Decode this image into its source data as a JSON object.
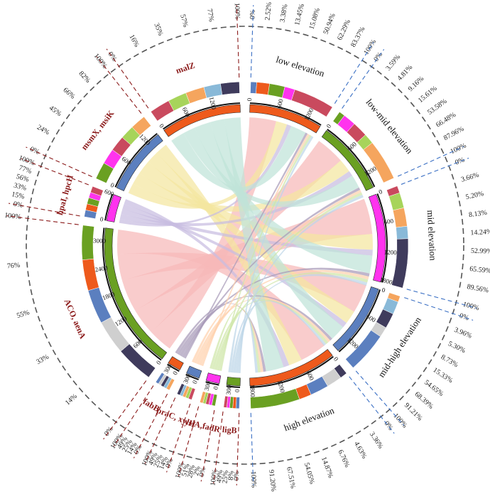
{
  "chart_data": {
    "type": "chord",
    "title": "",
    "colors": {
      "segment_fills": [
        "#5b7fbf",
        "#ee5a1c",
        "#6aa022",
        "#ff33ee",
        "#c94a5e",
        "#a7d45a",
        "#f5a55e",
        "#89b9d8",
        "#3f3b5c",
        "#cfcfcf"
      ],
      "link_colors": [
        "#bcd5e8",
        "#cfe6a8",
        "#ffd1ad",
        "#a79ab8",
        "#f7b8b8",
        "#c8bde0",
        "#f4e6a0",
        "#bfe3d8"
      ],
      "habitat_dash": "#3a6fc4",
      "gene_dash": "#8b1a1a",
      "outer_dash": "#555555"
    },
    "habitat_segments": [
      {
        "name": "low elevation",
        "total": 1500,
        "ticks": [
          "0",
          "600",
          "1200"
        ],
        "pct_labels": [
          "100%",
          "83.37%",
          "62.29%",
          "50.94%",
          "15.08%",
          "13.45%",
          "3.38%",
          "2.52%",
          "0%"
        ]
      },
      {
        "name": "low-mid elevation",
        "total": 1500,
        "ticks": [
          "0",
          "600",
          "1200"
        ],
        "pct_labels": [
          "100%",
          "87.96%",
          "66.48%",
          "53.58%",
          "15.61%",
          "9.16%",
          "4.81%",
          "3.59%",
          "0%"
        ]
      },
      {
        "name": "mid elevation",
        "total": 1800,
        "ticks": [
          "0",
          "600",
          "1200",
          "1800"
        ],
        "pct_labels": [
          "100%",
          "89.56%",
          "65.59%",
          "52.99%",
          "14.24%",
          "8.13%",
          "5.20%",
          "3.66%",
          "0%"
        ]
      },
      {
        "name": "mid-high elevation",
        "total": 1500,
        "ticks": [
          "0",
          "600",
          "1200"
        ],
        "pct_labels": [
          "100%",
          "91.21%",
          "68.39%",
          "54.65%",
          "15.33%",
          "8.73%",
          "5.30%",
          "3.96%",
          "0%"
        ]
      },
      {
        "name": "high elevation",
        "total": 1800,
        "ticks": [
          "0",
          "600",
          "1200",
          "1800"
        ],
        "pct_labels": [
          "100%",
          "91.20%",
          "67.51%",
          "54.05%",
          "14.87%",
          "6.76%",
          "4.63%",
          "3.36%",
          "0%"
        ]
      }
    ],
    "gene_segments": [
      {
        "name": "ligB",
        "total": 300,
        "ticks": [
          "0",
          "300"
        ],
        "pct_labels": [
          "100%",
          "49%",
          "25%",
          "8%",
          "0%"
        ]
      },
      {
        "name": "ysiA,fadR",
        "total": 300,
        "ticks": [
          "0",
          "300"
        ],
        "pct_labels": [
          "100%",
          "51%",
          "28%",
          "2%",
          "0%"
        ]
      },
      {
        "name": "praC, xylH",
        "total": 300,
        "ticks": [
          "0",
          "300"
        ],
        "pct_labels": [
          "100%",
          "49%",
          "25%",
          "14%",
          "0%"
        ]
      },
      {
        "name": "fabB",
        "total": 300,
        "ticks": [
          "0",
          "300"
        ],
        "pct_labels": [
          "100%",
          "49%",
          "25%",
          "14%",
          "0%"
        ]
      },
      {
        "name": "ACO, aenA",
        "total": 3300,
        "ticks": [
          "0",
          "600",
          "1200",
          "1800",
          "2400",
          "3000"
        ],
        "pct_labels": [
          "100%",
          "76%",
          "55%",
          "33%",
          "14%",
          "0%"
        ]
      },
      {
        "name": "hpaI, hpcH",
        "total": 600,
        "ticks": [
          "0",
          "600"
        ],
        "pct_labels": [
          "100%",
          "77%",
          "56%",
          "33%",
          "15%",
          "0%"
        ]
      },
      {
        "name": "msmX, msiK",
        "total": 1500,
        "ticks": [
          "0",
          "600",
          "1200"
        ],
        "pct_labels": [
          "100%",
          "82%",
          "66%",
          "45%",
          "24%",
          "0%"
        ]
      },
      {
        "name": "malZ",
        "total": 1800,
        "ticks": [
          "0",
          "600",
          "1200"
        ],
        "pct_labels": [
          "100%",
          "77%",
          "57%",
          "35%",
          "16%",
          "0%"
        ]
      }
    ],
    "links": [
      {
        "source": "ACO, aenA",
        "target": "low elevation",
        "value": 600
      },
      {
        "source": "ACO, aenA",
        "target": "low-mid elevation",
        "value": 650
      },
      {
        "source": "ACO, aenA",
        "target": "mid elevation",
        "value": 800
      },
      {
        "source": "ACO, aenA",
        "target": "mid-high elevation",
        "value": 650
      },
      {
        "source": "ACO, aenA",
        "target": "high elevation",
        "value": 600
      },
      {
        "source": "msmX, msiK",
        "target": "low elevation",
        "value": 250
      },
      {
        "source": "msmX, msiK",
        "target": "low-mid elevation",
        "value": 300
      },
      {
        "source": "msmX, msiK",
        "target": "mid elevation",
        "value": 350
      },
      {
        "source": "msmX, msiK",
        "target": "mid-high elevation",
        "value": 300
      },
      {
        "source": "msmX, msiK",
        "target": "high elevation",
        "value": 300
      },
      {
        "source": "hpaI, hpcH",
        "target": "low elevation",
        "value": 100
      },
      {
        "source": "hpaI, hpcH",
        "target": "low-mid elevation",
        "value": 120
      },
      {
        "source": "hpaI, hpcH",
        "target": "mid elevation",
        "value": 130
      },
      {
        "source": "hpaI, hpcH",
        "target": "mid-high elevation",
        "value": 120
      },
      {
        "source": "hpaI, hpcH",
        "target": "high elevation",
        "value": 130
      },
      {
        "source": "malZ",
        "target": "low elevation",
        "value": 350
      },
      {
        "source": "malZ",
        "target": "low-mid elevation",
        "value": 300
      },
      {
        "source": "malZ",
        "target": "mid elevation",
        "value": 400
      },
      {
        "source": "malZ",
        "target": "mid-high elevation",
        "value": 350
      },
      {
        "source": "malZ",
        "target": "high elevation",
        "value": 400
      },
      {
        "source": "fabB",
        "target": "low elevation",
        "value": 50
      },
      {
        "source": "fabB",
        "target": "low-mid elevation",
        "value": 60
      },
      {
        "source": "fabB",
        "target": "mid elevation",
        "value": 70
      },
      {
        "source": "fabB",
        "target": "mid-high elevation",
        "value": 60
      },
      {
        "source": "fabB",
        "target": "high elevation",
        "value": 60
      },
      {
        "source": "praC, xylH",
        "target": "low elevation",
        "value": 50
      },
      {
        "source": "praC, xylH",
        "target": "low-mid elevation",
        "value": 60
      },
      {
        "source": "praC, xylH",
        "target": "mid elevation",
        "value": 70
      },
      {
        "source": "praC, xylH",
        "target": "mid-high elevation",
        "value": 60
      },
      {
        "source": "praC, xylH",
        "target": "high elevation",
        "value": 60
      },
      {
        "source": "ysiA,fadR",
        "target": "low elevation",
        "value": 50
      },
      {
        "source": "ysiA,fadR",
        "target": "low-mid elevation",
        "value": 60
      },
      {
        "source": "ysiA,fadR",
        "target": "mid elevation",
        "value": 70
      },
      {
        "source": "ysiA,fadR",
        "target": "mid-high elevation",
        "value": 60
      },
      {
        "source": "ysiA,fadR",
        "target": "high elevation",
        "value": 60
      },
      {
        "source": "ligB",
        "target": "low elevation",
        "value": 50
      },
      {
        "source": "ligB",
        "target": "low-mid elevation",
        "value": 60
      },
      {
        "source": "ligB",
        "target": "mid elevation",
        "value": 70
      },
      {
        "source": "ligB",
        "target": "mid-high elevation",
        "value": 60
      },
      {
        "source": "ligB",
        "target": "high elevation",
        "value": 60
      }
    ]
  }
}
